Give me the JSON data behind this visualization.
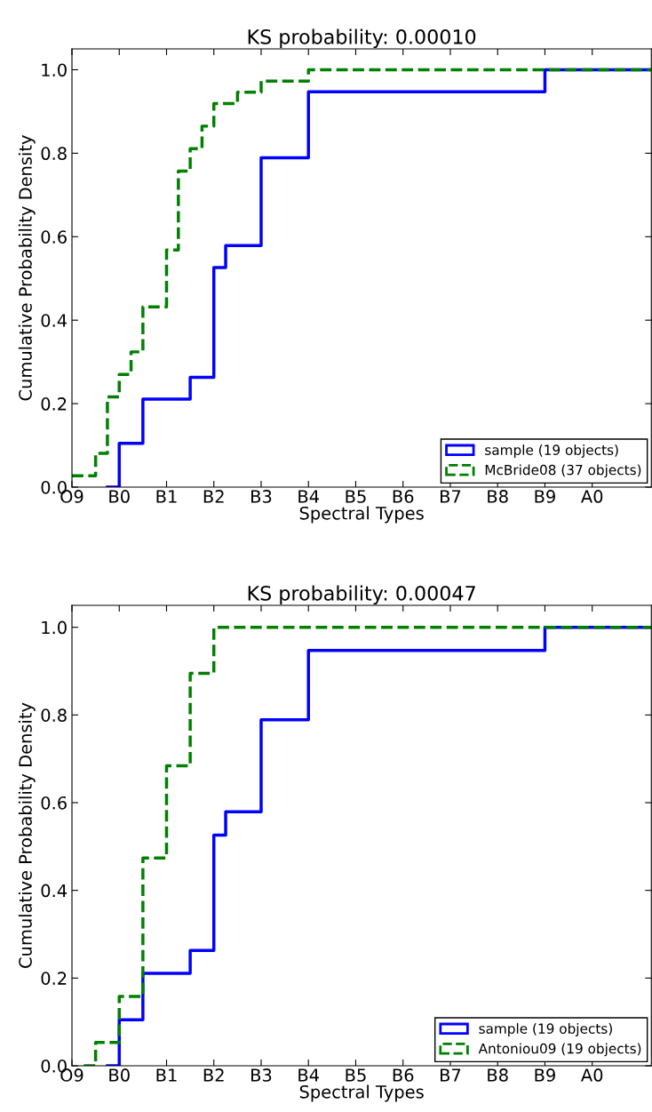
{
  "chart_data": [
    {
      "type": "step",
      "title": "KS probability: 0.00010",
      "xlabel": "Spectral Types",
      "ylabel": "Cumulative Probability Density",
      "categories": [
        "O9",
        null,
        null,
        null,
        "B0",
        null,
        null,
        null,
        "B1",
        null,
        null,
        null,
        "B2",
        null,
        null,
        null,
        "B3",
        null,
        null,
        null,
        "B4",
        null,
        null,
        null,
        "B5",
        null,
        null,
        null,
        "B6",
        null,
        null,
        null,
        "B7",
        null,
        null,
        null,
        "B8",
        null,
        null,
        null,
        "B9",
        null,
        null,
        null,
        "A0",
        null,
        null,
        null,
        null,
        null
      ],
      "ylim": [
        0,
        1.05
      ],
      "yticks": [
        {
          "value": 0,
          "label": "0.0"
        },
        {
          "value": 0.2,
          "label": "0.2"
        },
        {
          "value": 0.4,
          "label": "0.4"
        },
        {
          "value": 0.6,
          "label": "0.6"
        },
        {
          "value": 0.8,
          "label": "0.8"
        },
        {
          "value": 1.0,
          "label": "1.0"
        }
      ],
      "legend": "bottom right",
      "series": [
        {
          "name": "sample (19 objects)",
          "color": "#0000ff",
          "line_style": "solid",
          "values": [
            null,
            null,
            null,
            0,
            0.105,
            0.105,
            0.211,
            0.211,
            0.211,
            0.211,
            0.263,
            0.263,
            0.526,
            0.579,
            0.579,
            0.579,
            0.789,
            0.789,
            0.789,
            0.789,
            0.947,
            0.947,
            0.947,
            0.947,
            0.947,
            0.947,
            0.947,
            0.947,
            0.947,
            0.947,
            0.947,
            0.947,
            0.947,
            0.947,
            0.947,
            0.947,
            0.947,
            0.947,
            0.947,
            0.947,
            1.0,
            1.0,
            1.0,
            1.0,
            1.0,
            1.0,
            1.0,
            1.0,
            1.0,
            1.0
          ]
        },
        {
          "name": "McBride08 (37 objects)",
          "color": "#008000",
          "line_style": "dashed",
          "values": [
            0.027,
            0.027,
            0.081,
            0.216,
            0.27,
            0.324,
            0.432,
            0.432,
            0.568,
            0.757,
            0.811,
            0.865,
            0.919,
            0.919,
            0.946,
            0.946,
            0.973,
            0.973,
            0.973,
            0.973,
            1.0,
            1.0,
            1.0,
            1.0,
            1.0,
            1.0,
            1.0,
            1.0,
            1.0,
            1.0,
            1.0,
            1.0,
            1.0,
            1.0,
            1.0,
            1.0,
            1.0,
            1.0,
            1.0,
            1.0,
            1.0,
            1.0,
            1.0,
            1.0,
            1.0,
            1.0,
            1.0,
            1.0,
            1.0,
            1.0
          ]
        }
      ]
    },
    {
      "type": "step",
      "title": "KS probability: 0.00047",
      "xlabel": "Spectral Types",
      "ylabel": "Cumulative Probability Density",
      "categories": [
        "O9",
        null,
        null,
        null,
        "B0",
        null,
        null,
        null,
        "B1",
        null,
        null,
        null,
        "B2",
        null,
        null,
        null,
        "B3",
        null,
        null,
        null,
        "B4",
        null,
        null,
        null,
        "B5",
        null,
        null,
        null,
        "B6",
        null,
        null,
        null,
        "B7",
        null,
        null,
        null,
        "B8",
        null,
        null,
        null,
        "B9",
        null,
        null,
        null,
        "A0",
        null,
        null,
        null,
        null,
        null
      ],
      "ylim": [
        0,
        1.05
      ],
      "yticks": [
        {
          "value": 0,
          "label": "0.0"
        },
        {
          "value": 0.2,
          "label": "0.2"
        },
        {
          "value": 0.4,
          "label": "0.4"
        },
        {
          "value": 0.6,
          "label": "0.6"
        },
        {
          "value": 0.8,
          "label": "0.8"
        },
        {
          "value": 1.0,
          "label": "1.0"
        }
      ],
      "legend": "bottom right",
      "series": [
        {
          "name": "sample (19 objects)",
          "color": "#0000ff",
          "line_style": "solid",
          "values": [
            null,
            null,
            null,
            0,
            0.105,
            0.105,
            0.211,
            0.211,
            0.211,
            0.211,
            0.263,
            0.263,
            0.526,
            0.579,
            0.579,
            0.579,
            0.789,
            0.789,
            0.789,
            0.789,
            0.947,
            0.947,
            0.947,
            0.947,
            0.947,
            0.947,
            0.947,
            0.947,
            0.947,
            0.947,
            0.947,
            0.947,
            0.947,
            0.947,
            0.947,
            0.947,
            0.947,
            0.947,
            0.947,
            0.947,
            1.0,
            1.0,
            1.0,
            1.0,
            1.0,
            1.0,
            1.0,
            1.0,
            1.0,
            1.0
          ]
        },
        {
          "name": "Antoniou09 (19 objects)",
          "color": "#008000",
          "line_style": "dashed",
          "values": [
            null,
            0,
            0.053,
            0.053,
            0.158,
            0.158,
            0.474,
            0.474,
            0.684,
            0.684,
            0.895,
            0.895,
            1.0,
            1.0,
            1.0,
            1.0,
            1.0,
            1.0,
            1.0,
            1.0,
            1.0,
            1.0,
            1.0,
            1.0,
            1.0,
            1.0,
            1.0,
            1.0,
            1.0,
            1.0,
            1.0,
            1.0,
            1.0,
            1.0,
            1.0,
            1.0,
            1.0,
            1.0,
            1.0,
            1.0,
            1.0,
            1.0,
            1.0,
            1.0,
            1.0,
            1.0,
            1.0,
            1.0,
            1.0,
            1.0
          ]
        }
      ]
    }
  ]
}
